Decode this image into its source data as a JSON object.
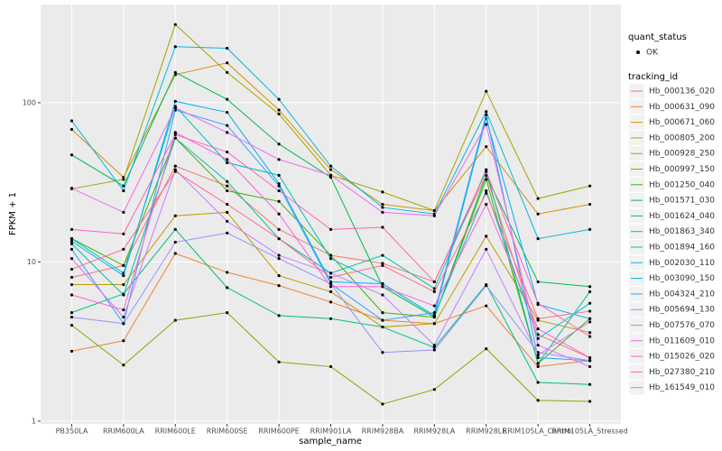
{
  "chart_data": {
    "type": "line",
    "x_label": "sample_name",
    "y_label": "FPKM + 1",
    "log_y": true,
    "grid": true,
    "ylim": [
      0.96,
      414
    ],
    "yticks": [
      1,
      10,
      100
    ],
    "point_legend": {
      "title": "quant_status",
      "label": "OK"
    },
    "legend_title": "tracking_id",
    "categories": [
      "PB350LA",
      "RRIM600LA",
      "RRIM600LE",
      "RRIM600SE",
      "RRIM600PE",
      "RRIM901LA",
      "RRIM928BA",
      "RRIM928LA",
      "RRIM928LE",
      "RRIM105LA_Control",
      "RRIM105LA_Stressed"
    ],
    "series": [
      {
        "name": "Hb_000136_020",
        "color": "#F8766D",
        "values": [
          8.0,
          9.5,
          40,
          30,
          16,
          11,
          9.8,
          7.5,
          35,
          3.5,
          2.5
        ]
      },
      {
        "name": "Hb_000631_090",
        "color": "#EA8331",
        "values": [
          2.75,
          3.2,
          11.3,
          8.6,
          7.1,
          5.6,
          4.3,
          4.1,
          5.3,
          2.2,
          2.4
        ]
      },
      {
        "name": "Hb_000671_060",
        "color": "#D89000",
        "values": [
          68,
          34,
          150,
          178,
          90,
          38,
          23,
          21,
          53,
          20,
          23
        ]
      },
      {
        "name": "Hb_000805_200",
        "color": "#C09B00",
        "values": [
          7.2,
          7.2,
          19.5,
          20.5,
          8.2,
          6.5,
          3.9,
          4.1,
          14.5,
          4.3,
          3.6
        ]
      },
      {
        "name": "Hb_000928_250",
        "color": "#A3A500",
        "values": [
          28.8,
          33,
          310,
          155,
          85,
          35,
          27.5,
          21,
          118,
          25,
          30
        ]
      },
      {
        "name": "Hb_000997_150",
        "color": "#7CAE00",
        "values": [
          4.0,
          2.25,
          4.3,
          4.8,
          2.35,
          2.2,
          1.28,
          1.58,
          2.85,
          1.35,
          1.33
        ]
      },
      {
        "name": "Hb_001250_040",
        "color": "#39B600",
        "values": [
          14,
          9.5,
          60,
          28,
          24,
          11,
          4.8,
          4.5,
          33,
          2.3,
          4.4
        ]
      },
      {
        "name": "Hb_001571_030",
        "color": "#00BB4E",
        "values": [
          47,
          30,
          155,
          105,
          55,
          34,
          7,
          4.5,
          35,
          7.5,
          7
        ]
      },
      {
        "name": "Hb_001624_040",
        "color": "#00BF7D",
        "values": [
          4.8,
          6.3,
          16,
          6.9,
          4.6,
          4.4,
          3.9,
          2.9,
          7.2,
          1.75,
          1.7
        ]
      },
      {
        "name": "Hb_001863_340",
        "color": "#00C1A3",
        "values": [
          13,
          6.2,
          60,
          32,
          14,
          8.5,
          11,
          6.8,
          38,
          2.3,
          6.5
        ]
      },
      {
        "name": "Hb_001894_160",
        "color": "#00BFC4",
        "values": [
          14,
          8.5,
          95,
          42,
          35,
          10.5,
          7.3,
          4.6,
          28,
          3.3,
          5.5
        ]
      },
      {
        "name": "Hb_002030_110",
        "color": "#00BAE0",
        "values": [
          77,
          28,
          225,
          220,
          105,
          40,
          22,
          20,
          88,
          14,
          16
        ]
      },
      {
        "name": "Hb_003090_150",
        "color": "#00B0F6",
        "values": [
          13.5,
          8.2,
          102,
          87,
          31,
          7.5,
          7.3,
          4.6,
          80,
          5.4,
          4.4
        ]
      },
      {
        "name": "Hb_004324_210",
        "color": "#35A2FF",
        "values": [
          12,
          4.1,
          90,
          72,
          30,
          7.3,
          4.3,
          4.8,
          84,
          2.5,
          2.4
        ]
      },
      {
        "name": "Hb_005694_130",
        "color": "#9590FF",
        "values": [
          4.5,
          4.1,
          13.3,
          15.2,
          10.5,
          7.3,
          2.7,
          2.8,
          7.1,
          2.7,
          2.4
        ]
      },
      {
        "name": "Hb_007576_070",
        "color": "#C77CFF",
        "values": [
          10.5,
          4.5,
          38,
          18,
          11,
          8.5,
          6.2,
          3,
          12,
          2.6,
          4.2
        ]
      },
      {
        "name": "Hb_011609_010",
        "color": "#E76BF3",
        "values": [
          29,
          20.5,
          93,
          65,
          44,
          35,
          20.5,
          19.5,
          73,
          3.0,
          2.2
        ]
      },
      {
        "name": "Hb_015026_020",
        "color": "#FA62DB",
        "values": [
          6.2,
          5.0,
          65,
          44,
          20,
          7,
          7,
          5.3,
          23,
          3.8,
          2.5
        ]
      },
      {
        "name": "Hb_027380_210",
        "color": "#FF62BC",
        "values": [
          16,
          15,
          63,
          49,
          28,
          16,
          16.5,
          7.5,
          37,
          5.5,
          3.4
        ]
      },
      {
        "name": "Hb_161549_010",
        "color": "#FF6C91",
        "values": [
          9,
          12,
          37,
          23,
          14,
          8,
          9.5,
          6.5,
          27,
          4.4,
          4.9
        ]
      }
    ]
  }
}
